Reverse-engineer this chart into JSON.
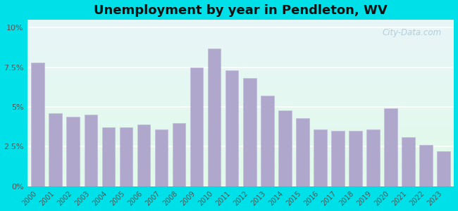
{
  "title": "Unemployment by year in Pendleton, WV",
  "years": [
    2000,
    2001,
    2002,
    2003,
    2004,
    2005,
    2006,
    2007,
    2008,
    2009,
    2010,
    2011,
    2012,
    2013,
    2014,
    2015,
    2016,
    2017,
    2018,
    2019,
    2020,
    2021,
    2022,
    2023
  ],
  "values": [
    7.8,
    4.6,
    4.4,
    4.5,
    3.7,
    3.7,
    3.9,
    3.6,
    4.0,
    7.5,
    8.7,
    7.3,
    6.8,
    5.7,
    4.8,
    4.3,
    3.6,
    3.5,
    3.5,
    3.6,
    4.9,
    3.1,
    2.6,
    2.2
  ],
  "bar_color": "#b0a8cc",
  "bar_edge_color": "#c0bada",
  "outer_bg": "#00e0e8",
  "yticks": [
    0,
    2.5,
    5.0,
    7.5,
    10.0
  ],
  "ytick_labels": [
    "0%",
    "2.5%",
    "5%",
    "7.5%",
    "10%"
  ],
  "ylim": [
    0,
    10.5
  ],
  "title_fontsize": 13,
  "watermark": "City-Data.com"
}
